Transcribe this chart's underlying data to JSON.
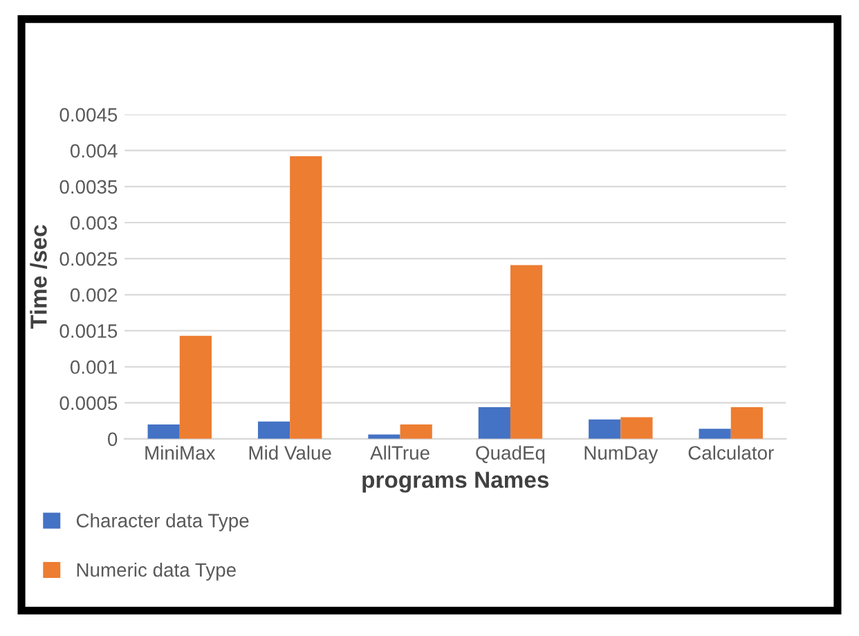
{
  "chart_data": {
    "type": "bar",
    "xlabel": "programs Names",
    "ylabel": "Time /sec",
    "categories": [
      "MiniMax",
      "Mid Value",
      "AllTrue",
      "QuadEq",
      "NumDay",
      "Calculator"
    ],
    "series": [
      {
        "name": "Character data Type",
        "color": "#4472c4",
        "values": [
          0.0002,
          0.00024,
          6e-05,
          0.00044,
          0.00027,
          0.00014
        ]
      },
      {
        "name": "Numeric data Type",
        "color": "#ed7d31",
        "values": [
          0.00143,
          0.00392,
          0.0002,
          0.00241,
          0.0003,
          0.00044
        ]
      }
    ],
    "ylim": [
      0,
      0.0045
    ],
    "yticks": [
      0,
      0.0005,
      0.001,
      0.0015,
      0.002,
      0.0025,
      0.003,
      0.0035,
      0.004,
      0.0045
    ],
    "grid": "y",
    "legend": "bottom left"
  }
}
